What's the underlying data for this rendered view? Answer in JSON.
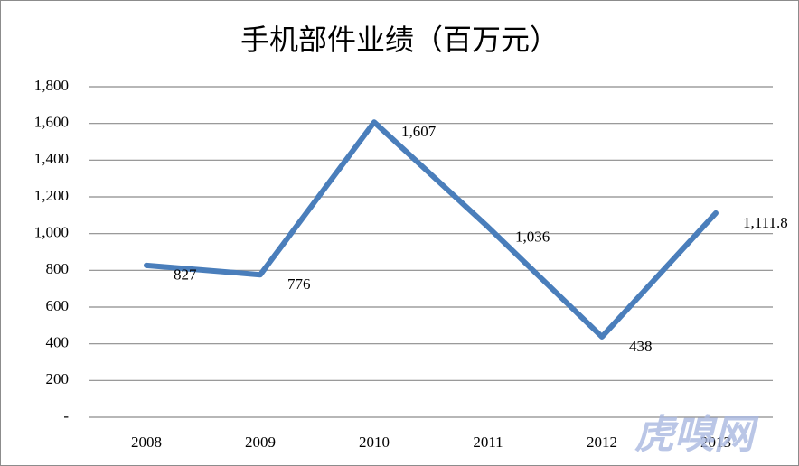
{
  "chart_data": {
    "type": "line",
    "title": "手机部件业绩（百万元）",
    "categories": [
      "2008",
      "2009",
      "2010",
      "2011",
      "2012",
      "2013"
    ],
    "series": [
      {
        "color": "#4a7ebb",
        "values": [
          827,
          776,
          1607,
          1036,
          438,
          1111.8
        ],
        "value_labels": [
          "827",
          "776",
          "1,607",
          "1,036",
          "438",
          "1,111.8"
        ]
      }
    ],
    "ylim": [
      0,
      1800
    ],
    "yticks": [
      {
        "value": 0,
        "label": "-"
      },
      200,
      400,
      600,
      800,
      {
        "value": 1000,
        "label": "1,000"
      },
      {
        "value": 1200,
        "label": "1,200"
      },
      {
        "value": 1400,
        "label": "1,400"
      },
      {
        "value": 1600,
        "label": "1,600"
      },
      {
        "value": 1800,
        "label": "1,800"
      }
    ],
    "grid": true
  },
  "watermark": "虎嗅网"
}
